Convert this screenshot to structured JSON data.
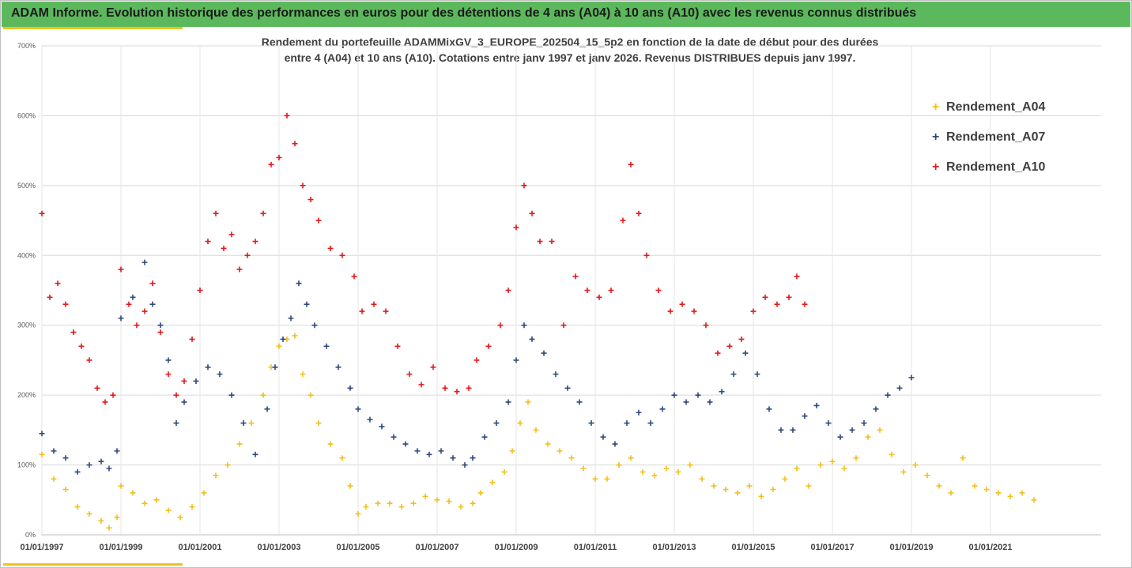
{
  "header": {
    "title": "ADAM Informe. Evolution historique des performances en euros pour des détentions de 4 ans (A04) à 10 ans (A10) avec les revenus connus distribués"
  },
  "subtitle": {
    "line1": "Rendement du portefeuille ADAMMixGV_3_EUROPE_202504_15_5p2  en fonction de la date de début pour des durées",
    "line2": "entre 4 (A04) et 10 ans (A10). Cotations entre janv 1997 et janv 2026. Revenus DISTRIBUES depuis janv 1997."
  },
  "chart_data": {
    "type": "scatter",
    "y_ticks": [
      "0%",
      "100%",
      "200%",
      "300%",
      "400%",
      "500%",
      "600%",
      "700%"
    ],
    "ylim": [
      0,
      700
    ],
    "x_ticks": [
      "01/01/1997",
      "01/01/1999",
      "01/01/2001",
      "01/01/2003",
      "01/01/2005",
      "01/01/2007",
      "01/01/2009",
      "01/01/2011",
      "01/01/2013",
      "01/01/2015",
      "01/01/2017",
      "01/01/2019",
      "01/01/2021"
    ],
    "xlim": [
      1997.0,
      2023.8
    ],
    "grid": true,
    "legend_position": "right",
    "series": [
      {
        "name": "Rendement_A04",
        "color": "#f2c01e",
        "points": [
          [
            1997.0,
            115
          ],
          [
            1997.3,
            80
          ],
          [
            1997.6,
            65
          ],
          [
            1997.9,
            40
          ],
          [
            1998.2,
            30
          ],
          [
            1998.5,
            20
          ],
          [
            1998.7,
            10
          ],
          [
            1998.9,
            25
          ],
          [
            1999.0,
            70
          ],
          [
            1999.3,
            60
          ],
          [
            1999.6,
            45
          ],
          [
            1999.9,
            50
          ],
          [
            2000.2,
            35
          ],
          [
            2000.5,
            25
          ],
          [
            2000.8,
            40
          ],
          [
            2001.1,
            60
          ],
          [
            2001.4,
            85
          ],
          [
            2001.7,
            100
          ],
          [
            2002.0,
            130
          ],
          [
            2002.3,
            160
          ],
          [
            2002.6,
            200
          ],
          [
            2002.8,
            240
          ],
          [
            2003.0,
            270
          ],
          [
            2003.2,
            280
          ],
          [
            2003.4,
            285
          ],
          [
            2003.6,
            230
          ],
          [
            2003.8,
            200
          ],
          [
            2004.0,
            160
          ],
          [
            2004.3,
            130
          ],
          [
            2004.6,
            110
          ],
          [
            2004.8,
            70
          ],
          [
            2005.0,
            30
          ],
          [
            2005.2,
            40
          ],
          [
            2005.5,
            45
          ],
          [
            2005.8,
            45
          ],
          [
            2006.1,
            40
          ],
          [
            2006.4,
            45
          ],
          [
            2006.7,
            55
          ],
          [
            2007.0,
            50
          ],
          [
            2007.3,
            48
          ],
          [
            2007.6,
            40
          ],
          [
            2007.9,
            45
          ],
          [
            2008.1,
            60
          ],
          [
            2008.4,
            75
          ],
          [
            2008.7,
            90
          ],
          [
            2008.9,
            120
          ],
          [
            2009.1,
            160
          ],
          [
            2009.3,
            190
          ],
          [
            2009.5,
            150
          ],
          [
            2009.8,
            130
          ],
          [
            2010.1,
            120
          ],
          [
            2010.4,
            110
          ],
          [
            2010.7,
            95
          ],
          [
            2011.0,
            80
          ],
          [
            2011.3,
            80
          ],
          [
            2011.6,
            100
          ],
          [
            2011.9,
            110
          ],
          [
            2012.2,
            90
          ],
          [
            2012.5,
            85
          ],
          [
            2012.8,
            95
          ],
          [
            2013.1,
            90
          ],
          [
            2013.4,
            100
          ],
          [
            2013.7,
            80
          ],
          [
            2014.0,
            70
          ],
          [
            2014.3,
            65
          ],
          [
            2014.6,
            60
          ],
          [
            2014.9,
            70
          ],
          [
            2015.2,
            55
          ],
          [
            2015.5,
            65
          ],
          [
            2015.8,
            80
          ],
          [
            2016.1,
            95
          ],
          [
            2016.4,
            70
          ],
          [
            2016.7,
            100
          ],
          [
            2017.0,
            105
          ],
          [
            2017.3,
            95
          ],
          [
            2017.6,
            110
          ],
          [
            2017.9,
            140
          ],
          [
            2018.2,
            150
          ],
          [
            2018.5,
            115
          ],
          [
            2018.8,
            90
          ],
          [
            2019.1,
            100
          ],
          [
            2019.4,
            85
          ],
          [
            2019.7,
            70
          ],
          [
            2020.0,
            60
          ],
          [
            2020.3,
            110
          ],
          [
            2020.6,
            70
          ],
          [
            2020.9,
            65
          ],
          [
            2021.2,
            60
          ],
          [
            2021.5,
            55
          ],
          [
            2021.8,
            60
          ],
          [
            2022.1,
            50
          ]
        ]
      },
      {
        "name": "Rendement_A07",
        "color": "#2e4a7d",
        "points": [
          [
            1997.0,
            145
          ],
          [
            1997.3,
            120
          ],
          [
            1997.6,
            110
          ],
          [
            1997.9,
            90
          ],
          [
            1998.2,
            100
          ],
          [
            1998.5,
            105
          ],
          [
            1998.7,
            95
          ],
          [
            1998.9,
            120
          ],
          [
            1999.0,
            310
          ],
          [
            1999.3,
            340
          ],
          [
            1999.6,
            390
          ],
          [
            1999.8,
            330
          ],
          [
            2000.0,
            300
          ],
          [
            2000.2,
            250
          ],
          [
            2000.4,
            160
          ],
          [
            2000.6,
            190
          ],
          [
            2000.9,
            220
          ],
          [
            2001.2,
            240
          ],
          [
            2001.5,
            230
          ],
          [
            2001.8,
            200
          ],
          [
            2002.1,
            160
          ],
          [
            2002.4,
            115
          ],
          [
            2002.7,
            180
          ],
          [
            2002.9,
            240
          ],
          [
            2003.1,
            280
          ],
          [
            2003.3,
            310
          ],
          [
            2003.5,
            360
          ],
          [
            2003.7,
            330
          ],
          [
            2003.9,
            300
          ],
          [
            2004.2,
            270
          ],
          [
            2004.5,
            240
          ],
          [
            2004.8,
            210
          ],
          [
            2005.0,
            180
          ],
          [
            2005.3,
            165
          ],
          [
            2005.6,
            155
          ],
          [
            2005.9,
            140
          ],
          [
            2006.2,
            130
          ],
          [
            2006.5,
            120
          ],
          [
            2006.8,
            115
          ],
          [
            2007.1,
            120
          ],
          [
            2007.4,
            110
          ],
          [
            2007.7,
            100
          ],
          [
            2007.9,
            110
          ],
          [
            2008.2,
            140
          ],
          [
            2008.5,
            160
          ],
          [
            2008.8,
            190
          ],
          [
            2009.0,
            250
          ],
          [
            2009.2,
            300
          ],
          [
            2009.4,
            280
          ],
          [
            2009.7,
            260
          ],
          [
            2010.0,
            230
          ],
          [
            2010.3,
            210
          ],
          [
            2010.6,
            190
          ],
          [
            2010.9,
            160
          ],
          [
            2011.2,
            140
          ],
          [
            2011.5,
            130
          ],
          [
            2011.8,
            160
          ],
          [
            2012.1,
            175
          ],
          [
            2012.4,
            160
          ],
          [
            2012.7,
            180
          ],
          [
            2013.0,
            200
          ],
          [
            2013.3,
            190
          ],
          [
            2013.6,
            200
          ],
          [
            2013.9,
            190
          ],
          [
            2014.2,
            205
          ],
          [
            2014.5,
            230
          ],
          [
            2014.8,
            260
          ],
          [
            2015.1,
            230
          ],
          [
            2015.4,
            180
          ],
          [
            2015.7,
            150
          ],
          [
            2016.0,
            150
          ],
          [
            2016.3,
            170
          ],
          [
            2016.6,
            185
          ],
          [
            2016.9,
            160
          ],
          [
            2017.2,
            140
          ],
          [
            2017.5,
            150
          ],
          [
            2017.8,
            160
          ],
          [
            2018.1,
            180
          ],
          [
            2018.4,
            200
          ],
          [
            2018.7,
            210
          ],
          [
            2019.0,
            225
          ]
        ]
      },
      {
        "name": "Rendement_A10",
        "color": "#e31a1c",
        "points": [
          [
            1997.0,
            460
          ],
          [
            1997.2,
            340
          ],
          [
            1997.4,
            360
          ],
          [
            1997.6,
            330
          ],
          [
            1997.8,
            290
          ],
          [
            1998.0,
            270
          ],
          [
            1998.2,
            250
          ],
          [
            1998.4,
            210
          ],
          [
            1998.6,
            190
          ],
          [
            1998.8,
            200
          ],
          [
            1999.0,
            380
          ],
          [
            1999.2,
            330
          ],
          [
            1999.4,
            300
          ],
          [
            1999.6,
            320
          ],
          [
            1999.8,
            360
          ],
          [
            2000.0,
            290
          ],
          [
            2000.2,
            230
          ],
          [
            2000.4,
            200
          ],
          [
            2000.6,
            220
          ],
          [
            2000.8,
            280
          ],
          [
            2001.0,
            350
          ],
          [
            2001.2,
            420
          ],
          [
            2001.4,
            460
          ],
          [
            2001.6,
            410
          ],
          [
            2001.8,
            430
          ],
          [
            2002.0,
            380
          ],
          [
            2002.2,
            400
          ],
          [
            2002.4,
            420
          ],
          [
            2002.6,
            460
          ],
          [
            2002.8,
            530
          ],
          [
            2003.0,
            540
          ],
          [
            2003.2,
            600
          ],
          [
            2003.4,
            560
          ],
          [
            2003.6,
            500
          ],
          [
            2003.8,
            480
          ],
          [
            2004.0,
            450
          ],
          [
            2004.3,
            410
          ],
          [
            2004.6,
            400
          ],
          [
            2004.9,
            370
          ],
          [
            2005.1,
            320
          ],
          [
            2005.4,
            330
          ],
          [
            2005.7,
            320
          ],
          [
            2006.0,
            270
          ],
          [
            2006.3,
            230
          ],
          [
            2006.6,
            215
          ],
          [
            2006.9,
            240
          ],
          [
            2007.2,
            210
          ],
          [
            2007.5,
            205
          ],
          [
            2007.8,
            210
          ],
          [
            2008.0,
            250
          ],
          [
            2008.3,
            270
          ],
          [
            2008.6,
            300
          ],
          [
            2008.8,
            350
          ],
          [
            2009.0,
            440
          ],
          [
            2009.2,
            500
          ],
          [
            2009.4,
            460
          ],
          [
            2009.6,
            420
          ],
          [
            2009.9,
            420
          ],
          [
            2010.2,
            300
          ],
          [
            2010.5,
            370
          ],
          [
            2010.8,
            350
          ],
          [
            2011.1,
            340
          ],
          [
            2011.4,
            350
          ],
          [
            2011.7,
            450
          ],
          [
            2011.9,
            530
          ],
          [
            2012.1,
            460
          ],
          [
            2012.3,
            400
          ],
          [
            2012.6,
            350
          ],
          [
            2012.9,
            320
          ],
          [
            2013.2,
            330
          ],
          [
            2013.5,
            320
          ],
          [
            2013.8,
            300
          ],
          [
            2014.1,
            260
          ],
          [
            2014.4,
            270
          ],
          [
            2014.7,
            280
          ],
          [
            2015.0,
            320
          ],
          [
            2015.3,
            340
          ],
          [
            2015.6,
            330
          ],
          [
            2015.9,
            340
          ],
          [
            2016.1,
            370
          ],
          [
            2016.3,
            330
          ]
        ]
      }
    ]
  },
  "legend": {
    "items": [
      {
        "label": "Rendement_A04",
        "color": "#f2c01e"
      },
      {
        "label": "Rendement_A07",
        "color": "#2e4a7d"
      },
      {
        "label": "Rendement_A10",
        "color": "#e31a1c"
      }
    ]
  }
}
